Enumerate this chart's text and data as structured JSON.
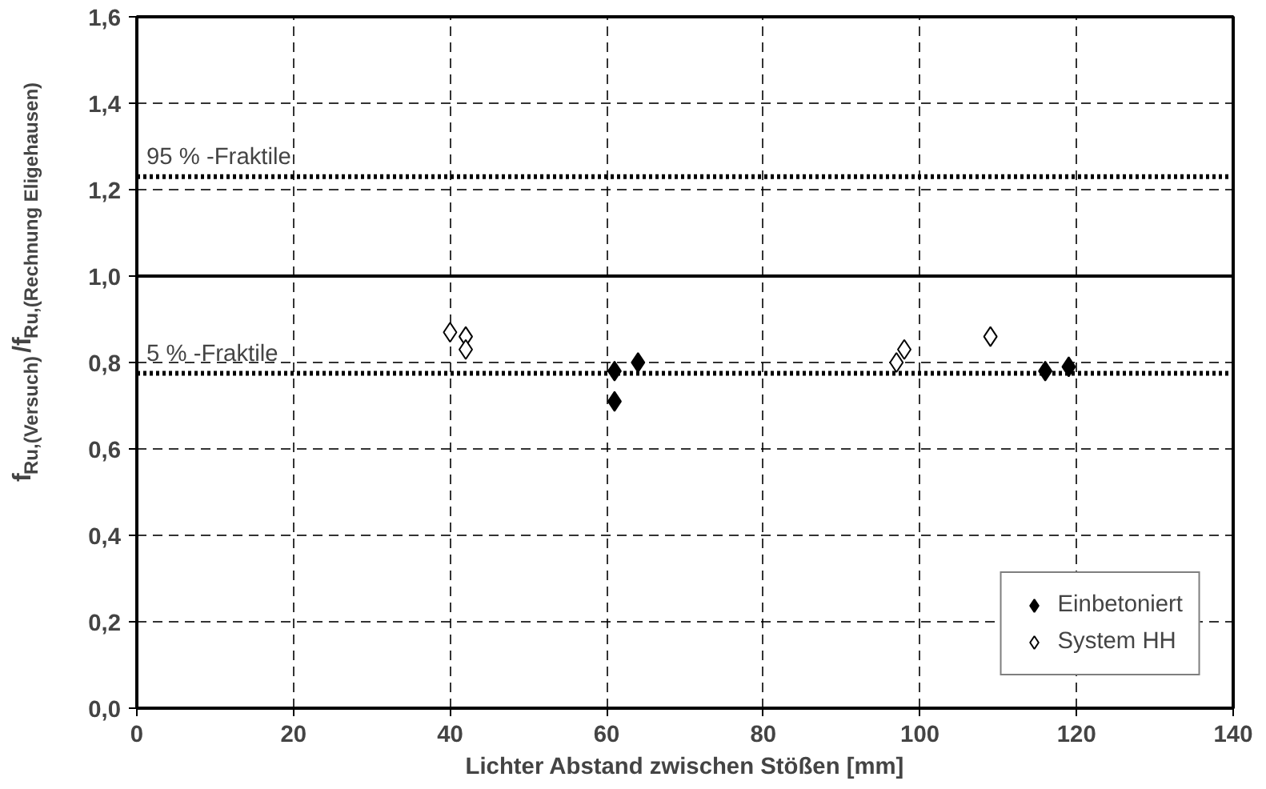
{
  "chart_data": {
    "type": "scatter",
    "xlabel": "Lichter Abstand zwischen Stößen [mm]",
    "ylabel": "f$_{Ru,(Versuch)}$/f$_{Ru,(Rechnung Eligehausen)}$",
    "xlim": [
      0,
      140
    ],
    "xticks": [
      0,
      20,
      40,
      60,
      80,
      100,
      120,
      140
    ],
    "ylim": [
      0,
      1.6
    ],
    "yticks": [
      {
        "value": 0,
        "label": "0,0"
      },
      {
        "value": 0.2,
        "label": "0,2"
      },
      {
        "value": 0.4,
        "label": "0,4"
      },
      {
        "value": 0.6,
        "label": "0,6"
      },
      {
        "value": 0.8,
        "label": "0,8"
      },
      {
        "value": 1.0,
        "label": "1,0"
      },
      {
        "value": 1.2,
        "label": "1,2"
      },
      {
        "value": 1.4,
        "label": "1,4"
      },
      {
        "value": 1.6,
        "label": "1,6"
      }
    ],
    "grid": true,
    "legend": "bottom right",
    "marker": "diamond",
    "series": [
      {
        "name": "Einbetoniert",
        "color": "#000000",
        "x": [
          61,
          61,
          64,
          116,
          119
        ],
        "values": [
          0.78,
          0.71,
          0.8,
          0.78,
          0.79
        ]
      },
      {
        "name": "System HH",
        "color": "#ffffff",
        "x": [
          40,
          42,
          42,
          97,
          98,
          109
        ],
        "values": [
          0.87,
          0.86,
          0.83,
          0.8,
          0.83,
          0.86
        ]
      }
    ],
    "ref_lines": [
      {
        "axis": "y",
        "value": 1.23,
        "label": "95 % -Fraktile",
        "line_style": "dotted",
        "color": "#000000"
      },
      {
        "axis": "y",
        "value": 0.775,
        "label": "5 % -Fraktile",
        "line_style": "dotted",
        "color": "#000000"
      },
      {
        "axis": "y",
        "value": 1.0,
        "label": null,
        "line_style": "solid",
        "color": "#000000"
      }
    ]
  }
}
